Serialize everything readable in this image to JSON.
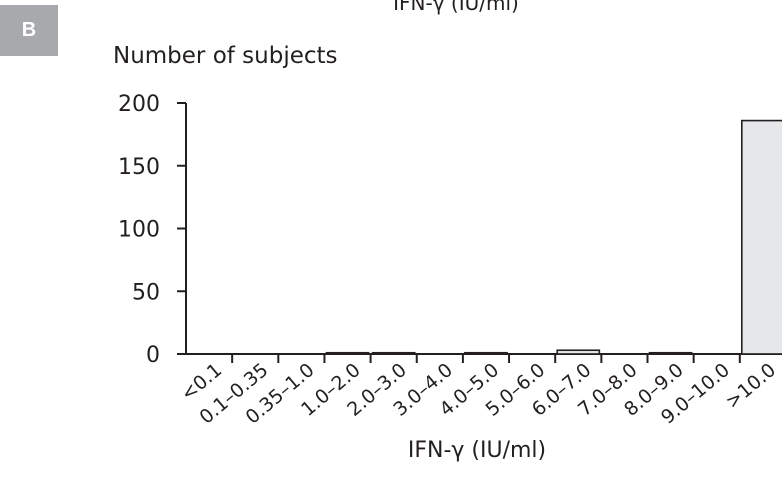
{
  "panel_label": "B",
  "top_caption": "IFN-γ (IU/ml)",
  "chart_data": {
    "type": "bar",
    "categories": [
      "<0.1",
      "0.1–0.35",
      "0.35–1.0",
      "1.0–2.0",
      "2.0–3.0",
      "3.0–4.0",
      "4.0–5.0",
      "5.0–6.0",
      "6.0–7.0",
      "7.0–8.0",
      "8.0–9.0",
      "9.0–10.0",
      ">10.0"
    ],
    "values": [
      0,
      0,
      0,
      1,
      1,
      0,
      1,
      0,
      3,
      0,
      1,
      0,
      186
    ],
    "title": "",
    "ylabel": "Number of subjects",
    "xlabel": "IFN-γ (IU/ml)",
    "ylim": [
      0,
      200
    ],
    "yticks": [
      0,
      50,
      100,
      150,
      200
    ],
    "bar_fill": "#e6e7e8",
    "bar_stroke": "#231f20",
    "axis_color": "#231f20"
  }
}
